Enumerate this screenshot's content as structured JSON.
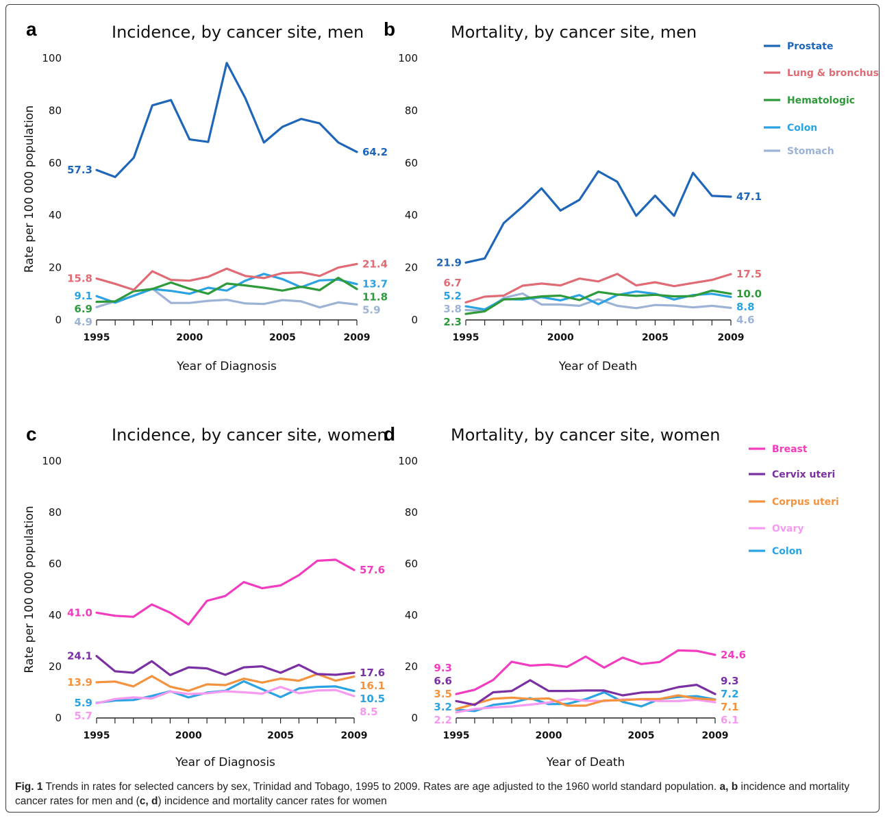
{
  "caption": {
    "fig_label": "Fig. 1",
    "text": " Trends in rates for selected cancers by sex, Trinidad and Tobago, 1995 to 2009. Rates are age adjusted to the 1960 world standard population. ",
    "ab": "a, b",
    "text2": " incidence and mortality cancer rates for men and (",
    "cd": "c, d",
    "text3": ") incidence and mortality cancer rates for women"
  },
  "legends": {
    "men": [
      {
        "name": "Prostate",
        "color": "#1f66b8"
      },
      {
        "name": "Lung & bronchus",
        "color": "#e06b74"
      },
      {
        "name": "Hematologic",
        "color": "#2e9a3a"
      },
      {
        "name": "Colon",
        "color": "#2ba3e3"
      },
      {
        "name": "Stomach",
        "color": "#9db3d6"
      }
    ],
    "women": [
      {
        "name": "Breast",
        "color": "#f23cc0"
      },
      {
        "name": "Cervix uteri",
        "color": "#7a2fa3"
      },
      {
        "name": "Corpus uteri",
        "color": "#f5923e"
      },
      {
        "name": "Ovary",
        "color": "#f59af0"
      },
      {
        "name": "Colon",
        "color": "#2ba3e3"
      }
    ]
  },
  "chart_data": [
    {
      "panel": "a",
      "type": "line",
      "title": "Incidence, by cancer site, men",
      "xlabel": "Year of Diagnosis",
      "ylabel": "Rate per 100 000 population",
      "ylim": [
        0,
        100
      ],
      "yticks": [
        "0",
        "20",
        "40",
        "60",
        "80",
        "100"
      ],
      "xticks": [
        "1995",
        "2000",
        "2005",
        "2009"
      ],
      "x": [
        1995,
        1996,
        1997,
        1998,
        1999,
        2000,
        2001,
        2002,
        2003,
        2004,
        2005,
        2006,
        2007,
        2008,
        2009
      ],
      "series": [
        {
          "name": "Prostate",
          "color": "#1f66b8",
          "values": [
            57.3,
            54.6,
            62.0,
            82.0,
            84.0,
            69.0,
            68.0,
            98.2,
            84.8,
            67.8,
            73.8,
            76.8,
            75.1,
            67.8,
            64.2
          ],
          "start_label": "57.3",
          "end_label": "64.2"
        },
        {
          "name": "Lung & bronchus",
          "color": "#e06b74",
          "values": [
            15.8,
            13.8,
            11.5,
            18.6,
            15.3,
            15.0,
            16.5,
            19.6,
            16.8,
            16.0,
            17.9,
            18.2,
            16.8,
            20.0,
            21.4
          ],
          "start_label": "15.8",
          "end_label": "21.4"
        },
        {
          "name": "Hematologic",
          "color": "#2e9a3a",
          "values": [
            6.9,
            7.1,
            11.0,
            11.8,
            14.3,
            11.9,
            10.0,
            13.9,
            13.2,
            12.3,
            11.2,
            12.7,
            11.4,
            16.1,
            11.8
          ],
          "start_label": "6.9",
          "end_label": "11.8"
        },
        {
          "name": "Colon",
          "color": "#2ba3e3",
          "values": [
            9.1,
            6.6,
            9.3,
            11.8,
            11.1,
            10.0,
            12.3,
            11.2,
            15.0,
            17.6,
            15.6,
            12.5,
            15.1,
            15.4,
            13.7
          ],
          "start_label": "9.1",
          "end_label": "13.7"
        },
        {
          "name": "Stomach",
          "color": "#9db3d6",
          "values": [
            4.9,
            7.1,
            9.2,
            12.0,
            6.5,
            6.5,
            7.3,
            7.7,
            6.3,
            6.1,
            7.6,
            7.1,
            4.8,
            6.7,
            5.9
          ],
          "start_label": "4.9",
          "end_label": "5.9"
        }
      ]
    },
    {
      "panel": "b",
      "type": "line",
      "title": "Mortality, by cancer site, men",
      "xlabel": "Year of Death",
      "ylabel": "",
      "ylim": [
        0,
        100
      ],
      "yticks": [
        "0",
        "20",
        "40",
        "60",
        "80",
        "100"
      ],
      "xticks": [
        "1995",
        "2000",
        "2005",
        "2009"
      ],
      "x": [
        1995,
        1996,
        1997,
        1998,
        1999,
        2000,
        2001,
        2002,
        2003,
        2004,
        2005,
        2006,
        2007,
        2008,
        2009
      ],
      "series": [
        {
          "name": "Prostate",
          "color": "#1f66b8",
          "values": [
            21.9,
            23.5,
            37.0,
            43.3,
            50.3,
            41.8,
            45.9,
            56.8,
            52.8,
            39.8,
            47.5,
            39.8,
            56.2,
            47.4,
            47.1
          ],
          "start_label": "21.9",
          "end_label": "47.1"
        },
        {
          "name": "Lung & bronchus",
          "color": "#e06b74",
          "values": [
            6.7,
            8.9,
            9.3,
            13.1,
            13.9,
            13.2,
            15.8,
            14.7,
            17.6,
            13.2,
            14.4,
            12.9,
            14.1,
            15.3,
            17.5
          ],
          "start_label": "6.7",
          "end_label": "17.5"
        },
        {
          "name": "Hematologic",
          "color": "#2e9a3a",
          "values": [
            2.3,
            3.3,
            7.8,
            8.2,
            9.0,
            9.3,
            7.6,
            10.7,
            9.7,
            9.2,
            9.6,
            9.0,
            9.1,
            11.2,
            10.0
          ],
          "start_label": "2.3",
          "end_label": "10.0"
        },
        {
          "name": "Colon",
          "color": "#2ba3e3",
          "values": [
            5.2,
            4.0,
            7.9,
            7.8,
            8.7,
            7.5,
            9.5,
            6.0,
            9.5,
            10.9,
            10.0,
            7.8,
            9.5,
            10.0,
            8.8
          ],
          "start_label": "5.2",
          "end_label": "8.8"
        },
        {
          "name": "Stomach",
          "color": "#9db3d6",
          "values": [
            3.8,
            3.4,
            8.4,
            10.1,
            5.9,
            5.9,
            5.4,
            7.9,
            5.4,
            4.5,
            5.7,
            5.5,
            4.8,
            5.4,
            4.6
          ],
          "start_label": "3.8",
          "end_label": "4.6"
        }
      ]
    },
    {
      "panel": "c",
      "type": "line",
      "title": "Incidence, by cancer site, women",
      "xlabel": "Year of Diagnosis",
      "ylabel": "Rate per 100 000 population",
      "ylim": [
        0,
        100
      ],
      "yticks": [
        "0",
        "20",
        "40",
        "60",
        "80",
        "100"
      ],
      "xticks": [
        "1995",
        "2000",
        "2005",
        "2009"
      ],
      "x": [
        1995,
        1996,
        1997,
        1998,
        1999,
        2000,
        2001,
        2002,
        2003,
        2004,
        2005,
        2006,
        2007,
        2008,
        2009
      ],
      "series": [
        {
          "name": "Breast",
          "color": "#f23cc0",
          "values": [
            41.0,
            39.8,
            39.4,
            44.2,
            41.0,
            36.4,
            45.6,
            47.5,
            52.9,
            50.5,
            51.6,
            55.6,
            61.2,
            61.6,
            57.6
          ],
          "start_label": "41.0",
          "end_label": "57.6"
        },
        {
          "name": "Cervix uteri",
          "color": "#7a2fa3",
          "values": [
            24.1,
            18.2,
            17.6,
            22.1,
            16.7,
            19.7,
            19.3,
            16.8,
            19.7,
            20.1,
            17.6,
            20.7,
            17.1,
            16.8,
            17.6
          ],
          "start_label": "24.1",
          "end_label": "17.6"
        },
        {
          "name": "Corpus uteri",
          "color": "#f5923e",
          "values": [
            13.9,
            14.2,
            12.3,
            16.3,
            12.2,
            10.6,
            13.1,
            12.8,
            15.3,
            13.8,
            15.3,
            14.5,
            17.1,
            14.5,
            16.1
          ],
          "start_label": "13.9",
          "end_label": "16.1"
        },
        {
          "name": "Ovary",
          "color": "#f59af0",
          "values": [
            5.7,
            7.4,
            8.0,
            7.6,
            10.3,
            9.3,
            9.6,
            10.4,
            10.0,
            9.5,
            12.1,
            9.6,
            10.7,
            10.9,
            8.5
          ],
          "start_label": "5.7",
          "end_label": "8.5"
        },
        {
          "name": "Colon",
          "color": "#2ba3e3",
          "values": [
            5.9,
            6.8,
            7.0,
            8.6,
            10.4,
            8.0,
            9.9,
            10.6,
            14.3,
            11.2,
            8.1,
            11.5,
            12.1,
            12.3,
            10.5
          ],
          "start_label": "5.9",
          "end_label": "10.5"
        }
      ]
    },
    {
      "panel": "d",
      "type": "line",
      "title": "Mortality, by cancer site, women",
      "xlabel": "Year of Death",
      "ylabel": "",
      "ylim": [
        0,
        100
      ],
      "yticks": [
        "0",
        "20",
        "40",
        "60",
        "80",
        "100"
      ],
      "xticks": [
        "1995",
        "2000",
        "2005",
        "2009"
      ],
      "x": [
        1995,
        1996,
        1997,
        1998,
        1999,
        2000,
        2001,
        2002,
        2003,
        2004,
        2005,
        2006,
        2007,
        2008,
        2009
      ],
      "series": [
        {
          "name": "Breast",
          "color": "#f23cc0",
          "values": [
            9.3,
            11.0,
            14.8,
            21.9,
            20.4,
            20.8,
            19.9,
            23.9,
            19.6,
            23.5,
            21.0,
            21.8,
            26.3,
            26.1,
            24.6
          ],
          "start_label": "9.3",
          "end_label": "24.6"
        },
        {
          "name": "Cervix uteri",
          "color": "#7a2fa3",
          "values": [
            6.6,
            5.1,
            10.0,
            10.5,
            14.7,
            10.5,
            10.5,
            10.7,
            10.7,
            8.8,
            9.9,
            10.2,
            12.0,
            12.9,
            9.3
          ],
          "start_label": "6.6",
          "end_label": "9.3"
        },
        {
          "name": "Corpus uteri",
          "color": "#f5923e",
          "values": [
            3.5,
            5.5,
            7.5,
            7.9,
            7.4,
            7.6,
            4.8,
            4.8,
            6.8,
            6.9,
            7.4,
            7.4,
            8.8,
            7.6,
            7.1
          ],
          "start_label": "3.5",
          "end_label": "7.1"
        },
        {
          "name": "Ovary",
          "color": "#f59af0",
          "values": [
            2.2,
            3.5,
            4.1,
            4.5,
            5.2,
            6.0,
            7.5,
            6.7,
            6.6,
            7.2,
            7.2,
            6.6,
            6.6,
            7.1,
            6.1
          ],
          "start_label": "2.2",
          "end_label": "6.1"
        },
        {
          "name": "Colon",
          "color": "#2ba3e3",
          "values": [
            3.2,
            2.7,
            5.1,
            5.9,
            7.7,
            5.4,
            5.5,
            7.3,
            10.0,
            6.3,
            4.5,
            7.4,
            8.2,
            8.5,
            7.2
          ],
          "start_label": "3.2",
          "end_label": "7.2"
        }
      ]
    }
  ]
}
